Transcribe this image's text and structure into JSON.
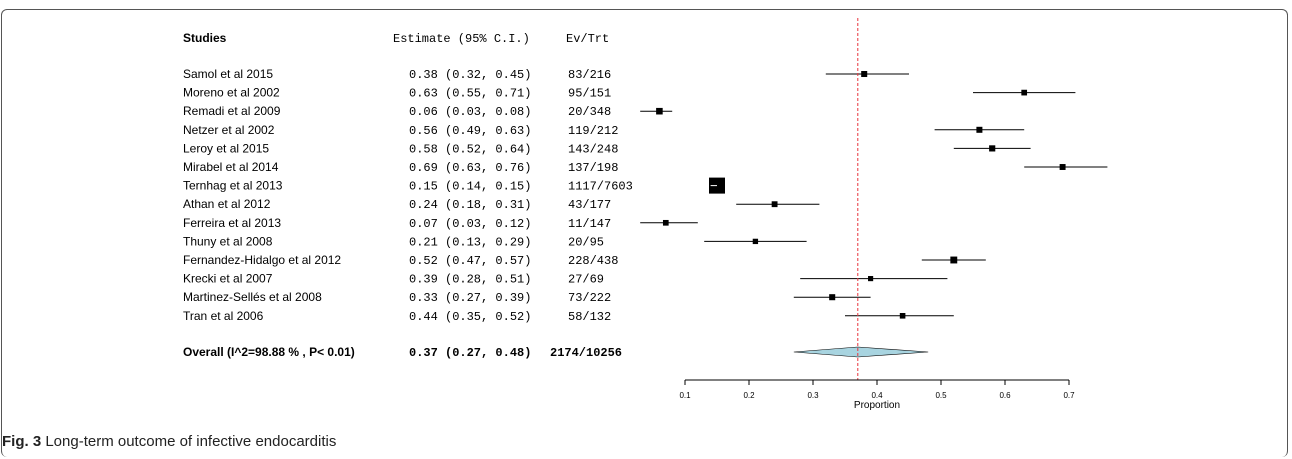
{
  "caption": {
    "label": "Fig. 3",
    "text": "Long-term outcome of infective endocarditis"
  },
  "chart_data": {
    "type": "forest",
    "columns": {
      "studies": "Studies",
      "estimate": "Estimate (95% C.I.)",
      "events": "Ev/Trt"
    },
    "xlabel": "Proportion",
    "xticks": [
      0.1,
      0.2,
      0.3,
      0.4,
      0.5,
      0.6,
      0.7
    ],
    "xlim": [
      0.06,
      0.76
    ],
    "reference_line": 0.37,
    "colors": {
      "diamond": "#a8d4e0",
      "reference_line": "#e8323c"
    },
    "studies": [
      {
        "name": "Samol et al  2015",
        "est": 0.38,
        "lo": 0.32,
        "hi": 0.45,
        "ev": "83/216",
        "estimate_text": "0.38 (0.32, 0.45)"
      },
      {
        "name": "Moreno et al 2002",
        "est": 0.63,
        "lo": 0.55,
        "hi": 0.71,
        "ev": "95/151",
        "estimate_text": "0.63 (0.55, 0.71)"
      },
      {
        "name": "Remadi et al 2009",
        "est": 0.06,
        "lo": 0.03,
        "hi": 0.08,
        "ev": "20/348",
        "estimate_text": "0.06 (0.03, 0.08)"
      },
      {
        "name": "Netzer et al  2002",
        "est": 0.56,
        "lo": 0.49,
        "hi": 0.63,
        "ev": "119/212",
        "estimate_text": "0.56 (0.49, 0.63)"
      },
      {
        "name": "Leroy et al 2015",
        "est": 0.58,
        "lo": 0.52,
        "hi": 0.64,
        "ev": "143/248",
        "estimate_text": "0.58 (0.52, 0.64)"
      },
      {
        "name": "Mirabel et al 2014",
        "est": 0.69,
        "lo": 0.63,
        "hi": 0.76,
        "ev": "137/198",
        "estimate_text": "0.69 (0.63, 0.76)"
      },
      {
        "name": "Ternhag et al 2013",
        "est": 0.15,
        "lo": 0.14,
        "hi": 0.15,
        "ev": "1117/7603",
        "estimate_text": "0.15 (0.14, 0.15)"
      },
      {
        "name": "Athan et al 2012",
        "est": 0.24,
        "lo": 0.18,
        "hi": 0.31,
        "ev": "43/177",
        "estimate_text": "0.24 (0.18, 0.31)"
      },
      {
        "name": "Ferreira et al 2013",
        "est": 0.07,
        "lo": 0.03,
        "hi": 0.12,
        "ev": "11/147",
        "estimate_text": "0.07 (0.03, 0.12)"
      },
      {
        "name": "Thuny et al 2008",
        "est": 0.21,
        "lo": 0.13,
        "hi": 0.29,
        "ev": "20/95",
        "estimate_text": "0.21 (0.13, 0.29)"
      },
      {
        "name": "Fernandez-Hidalgo et al 2012",
        "est": 0.52,
        "lo": 0.47,
        "hi": 0.57,
        "ev": "228/438",
        "estimate_text": "0.52 (0.47, 0.57)"
      },
      {
        "name": "Krecki et al 2007",
        "est": 0.39,
        "lo": 0.28,
        "hi": 0.51,
        "ev": "27/69",
        "estimate_text": "0.39 (0.28, 0.51)"
      },
      {
        "name": "Martinez-Sellés et al 2008",
        "est": 0.33,
        "lo": 0.27,
        "hi": 0.39,
        "ev": "73/222",
        "estimate_text": "0.33 (0.27, 0.39)"
      },
      {
        "name": "Tran et al 2006",
        "est": 0.44,
        "lo": 0.35,
        "hi": 0.52,
        "ev": "58/132",
        "estimate_text": "0.44 (0.35, 0.52)"
      }
    ],
    "overall": {
      "name": "Overall (I^2=98.88 % , P< 0.01)",
      "est": 0.37,
      "lo": 0.27,
      "hi": 0.48,
      "ev": "2174/10256",
      "estimate_text": "0.37 (0.27, 0.48)"
    }
  }
}
